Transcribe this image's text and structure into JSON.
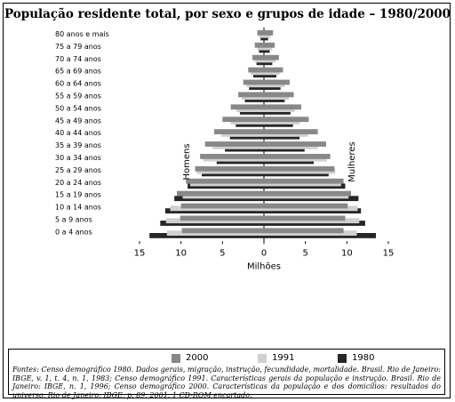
{
  "title": "População residente total, por sexo e grupos de idade – 1980/2000",
  "colors": {
    "2000": "#888888",
    "1991": "#d0d0d0",
    "1980": "#262626"
  },
  "chart_data": {
    "type": "bar",
    "orientation": "horizontal-pyramid",
    "categories": [
      "80 anos e mais",
      "75 a 79 anos",
      "70 a 74 anos",
      "65 a 69 anos",
      "60 a 64 anos",
      "55 a 59 anos",
      "50 a 54 anos",
      "45 a 49 anos",
      "40 a 44 anos",
      "35 a 39 anos",
      "30 a 34 anos",
      "25 a 29 anos",
      "20 a 24 anos",
      "15 a 19 anos",
      "10 a 14 anos",
      "5 a 9 anos",
      "0 a 4 anos"
    ],
    "series": [
      {
        "name": "2000",
        "men": [
          0.8,
          1.1,
          1.4,
          1.9,
          2.5,
          3.1,
          4.0,
          5.0,
          6.0,
          7.1,
          7.7,
          8.3,
          9.4,
          10.5,
          10.0,
          10.1,
          9.9
        ],
        "women": [
          1.1,
          1.3,
          1.8,
          2.3,
          3.1,
          3.6,
          4.5,
          5.4,
          6.5,
          7.5,
          8.0,
          8.5,
          9.6,
          10.5,
          10.1,
          9.8,
          9.6
        ]
      },
      {
        "name": "1991",
        "men": [
          0.6,
          0.8,
          1.1,
          1.6,
          2.1,
          2.7,
          3.3,
          4.0,
          5.1,
          6.2,
          7.3,
          8.1,
          8.9,
          9.8,
          11.3,
          11.8,
          11.7
        ],
        "women": [
          0.8,
          1.0,
          1.4,
          1.9,
          2.5,
          3.0,
          3.7,
          4.3,
          5.3,
          6.5,
          7.6,
          8.6,
          9.3,
          10.2,
          11.3,
          11.5,
          11.2
        ]
      },
      {
        "name": "1980",
        "men": [
          0.4,
          0.6,
          0.9,
          1.3,
          1.8,
          2.3,
          2.9,
          3.4,
          4.1,
          4.7,
          5.7,
          7.5,
          9.2,
          10.8,
          11.9,
          12.5,
          13.8
        ],
        "women": [
          0.5,
          0.7,
          1.0,
          1.5,
          2.0,
          2.5,
          3.2,
          3.5,
          4.3,
          4.9,
          6.0,
          7.8,
          9.8,
          11.4,
          11.7,
          12.2,
          13.5
        ]
      }
    ],
    "xlim": [
      -15,
      15
    ],
    "xticks": [
      "15",
      "10",
      "5",
      "0",
      "5",
      "10",
      "15"
    ],
    "xlabel": "Milhões",
    "left_label": "Homens",
    "right_label": "Mulheres",
    "legend": [
      "2000",
      "1991",
      "1980"
    ],
    "legend_position": "bottom"
  },
  "sources_text": "Fontes: Censo demográfico 1980. Dados gerais, migração, instrução, fecundidade, mortalidade. Brasil. Rio de Janeiro: IBGE, v. 1, t. 4, n. 1, 1983; Censo demográfico 1991. Características gerais da população e instrução. Brasil. Rio de Janeiro: IBGE, n. 1, 1996; Censo demográfico 2000. Características da população e dos domicílios: resultados do universo. Rio de Janeiro: IBGE, p. 89, 2001. 1 CD-ROM encartado."
}
